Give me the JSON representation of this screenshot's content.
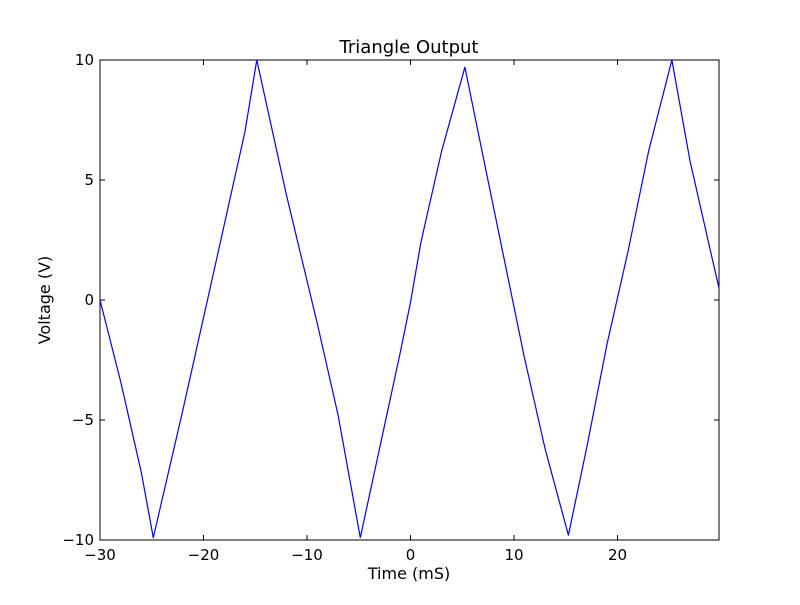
{
  "chart_data": {
    "type": "line",
    "title": "Triangle Output",
    "xlabel": "Time (mS)",
    "ylabel": "Voltage (V)",
    "xlim": [
      -30,
      29.8
    ],
    "ylim": [
      -10,
      10
    ],
    "xticks": [
      -30,
      -20,
      -10,
      0,
      10,
      20
    ],
    "xtick_labels": [
      "−30",
      "−20",
      "−10",
      "0",
      "10",
      "20"
    ],
    "yticks": [
      -10,
      -5,
      0,
      5,
      10
    ],
    "ytick_labels": [
      "−10",
      "−5",
      "0",
      "5",
      "10"
    ],
    "grid": false,
    "legend": "none",
    "line_color": "#0000ff",
    "series": [
      {
        "x": [
          -30.0,
          -28.0,
          -26.0,
          -24.85,
          -22.0,
          -19.0,
          -16.0,
          -14.85,
          -12.0,
          -9.0,
          -7.0,
          -4.85,
          -3.0,
          -1.0,
          0.0,
          1.0,
          3.0,
          5.25,
          7.0,
          9.0,
          11.0,
          13.0,
          15.25,
          17.0,
          19.0,
          21.0,
          23.0,
          25.25,
          27.0,
          29.0,
          29.8
        ],
        "y": [
          0.0,
          -3.4,
          -7.2,
          -9.9,
          -4.6,
          1.2,
          7.0,
          10.0,
          4.4,
          -1.0,
          -4.8,
          -9.9,
          -6.2,
          -2.2,
          -0.1,
          2.4,
          6.2,
          9.7,
          6.0,
          1.8,
          -2.4,
          -6.2,
          -9.8,
          -6.2,
          -1.8,
          2.0,
          6.2,
          10.0,
          5.8,
          2.0,
          0.5
        ]
      }
    ]
  }
}
